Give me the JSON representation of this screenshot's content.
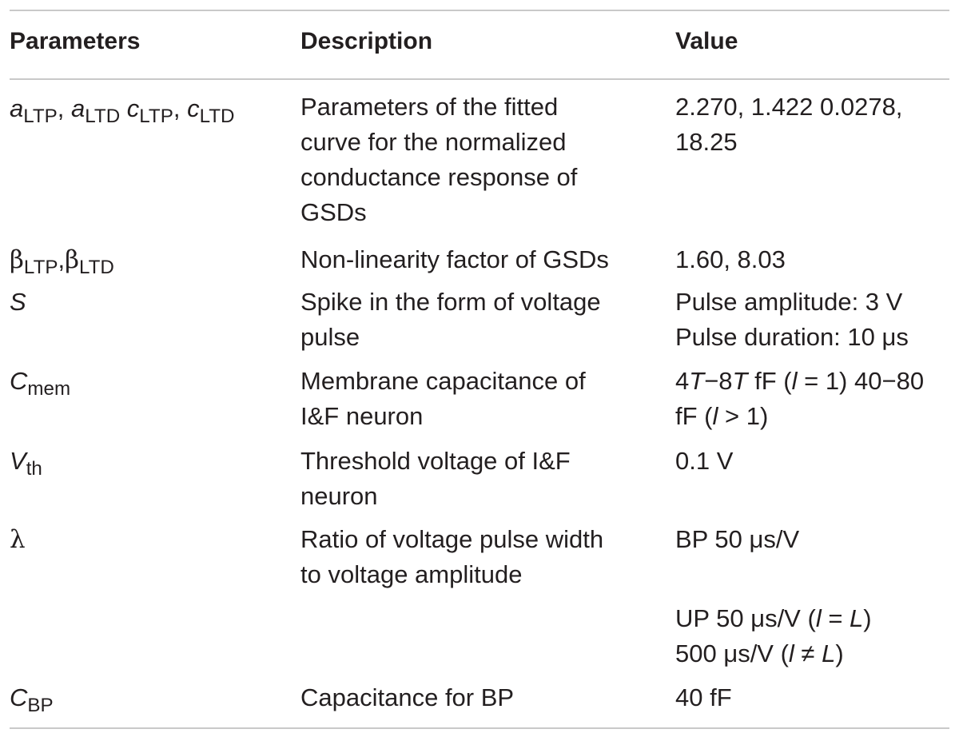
{
  "table": {
    "headers": {
      "parameters": "Parameters",
      "description": "Description",
      "value": "Value"
    },
    "rows": [
      {
        "param": {
          "a": "a",
          "ltp": "LTP",
          "sep1": ", ",
          "ltd": "LTD",
          "sp": " ",
          "c": "c",
          "sep2": ", "
        },
        "description": [
          "Parameters of the fitted",
          "curve for the normalized",
          "conductance response of",
          "GSDs"
        ],
        "value": [
          "2.270, 1.422 0.0278,",
          "18.25"
        ]
      },
      {
        "param": {
          "beta": "β",
          "ltp": "LTP",
          "sep": ",",
          "ltd": "LTD"
        },
        "description": [
          "Non-linearity factor of GSDs"
        ],
        "value": [
          "1.60, 8.03"
        ]
      },
      {
        "param": {
          "symbol": "S"
        },
        "description": [
          "Spike in the form of voltage",
          "pulse"
        ],
        "value": [
          "Pulse amplitude: 3 V",
          "Pulse duration: 10 μs"
        ]
      },
      {
        "param": {
          "symbol": "C",
          "sub": "mem"
        },
        "description": [
          "Membrane capacitance of",
          "I&F neuron"
        ],
        "value_parts": {
          "t": "T",
          "four": "4",
          "dash8": "−8",
          "ff_open": " fF (",
          "l": "l",
          "eq1_close": " = 1) 40−80",
          "ff_open2": "fF (",
          "gt1_close": " > 1)"
        }
      },
      {
        "param": {
          "symbol": "V",
          "sub": "th"
        },
        "description": [
          "Threshold voltage of I&F",
          "neuron"
        ],
        "value": [
          "0.1 V"
        ]
      },
      {
        "param": {
          "symbol": "λ"
        },
        "description": [
          "Ratio of voltage pulse width",
          "to voltage amplitude"
        ],
        "value": [
          "BP 50 μs/V"
        ]
      },
      {
        "value_parts": {
          "up": "UP 50 μs/V (",
          "l": "l",
          "eq": " = ",
          "L": "L",
          "close": ")",
          "v500": "500 μs/V (",
          "neq": " ≠ "
        }
      },
      {
        "param": {
          "symbol": "C",
          "sub": "BP"
        },
        "description": [
          "Capacitance for BP"
        ],
        "value": [
          "40 fF"
        ]
      }
    ]
  }
}
